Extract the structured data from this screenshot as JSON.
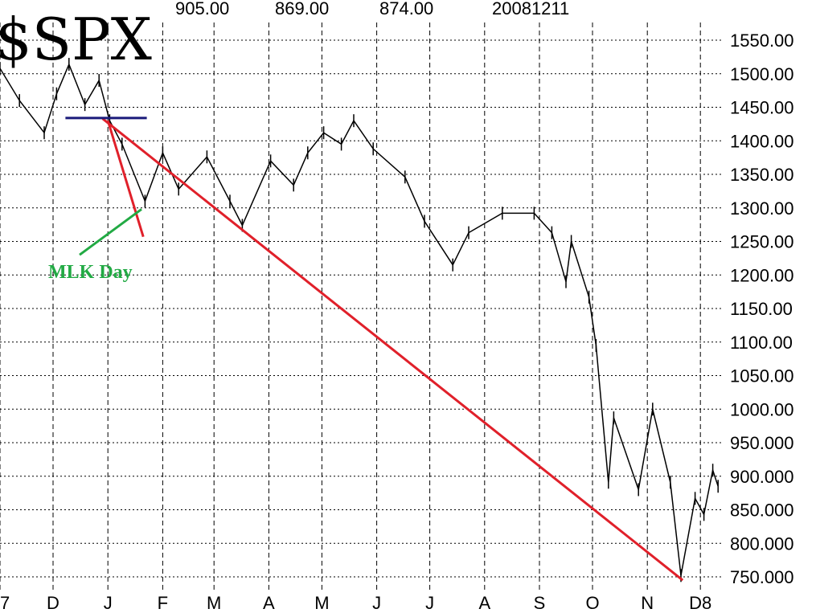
{
  "chart_data": {
    "type": "line",
    "title": "$SPX",
    "header_values": [
      "905.00",
      "869.00",
      "874.00",
      "20081211"
    ],
    "x_type": "date",
    "xlim": [
      "2007-11-01",
      "2008-12-15"
    ],
    "ylim": [
      735,
      1570
    ],
    "grid": true,
    "y_ticks": [
      1550,
      1500,
      1450,
      1400,
      1350,
      1300,
      1250,
      1200,
      1150,
      1100,
      1050,
      1000,
      950,
      900,
      850,
      800,
      750
    ],
    "y_tick_labels": [
      "1550.00",
      "1500.00",
      "1450.00",
      "1400.00",
      "1350.00",
      "1300.00",
      "1250.00",
      "1200.00",
      "1150.00",
      "1100.00",
      "1050.00",
      "1000.00",
      "950.000",
      "900.000",
      "850.000",
      "800.000",
      "750.000"
    ],
    "x_ticks": [
      "2007-11-01",
      "2007-12-01",
      "2008-01-01",
      "2008-02-01",
      "2008-03-01",
      "2008-04-01",
      "2008-05-01",
      "2008-06-01",
      "2008-07-01",
      "2008-08-01",
      "2008-09-01",
      "2008-10-01",
      "2008-11-01",
      "2008-12-01"
    ],
    "x_tick_labels": [
      "7",
      "D",
      "J",
      "F",
      "M",
      "A",
      "M",
      "J",
      "J",
      "A",
      "S",
      "O",
      "N",
      "D8"
    ],
    "series": [
      {
        "color": "#000000",
        "points": [
          [
            "2007-11-01",
            1508
          ],
          [
            "2007-11-12",
            1460
          ],
          [
            "2007-11-26",
            1412
          ],
          [
            "2007-12-03",
            1470
          ],
          [
            "2007-12-10",
            1514
          ],
          [
            "2007-12-19",
            1454
          ],
          [
            "2007-12-27",
            1490
          ],
          [
            "2008-01-02",
            1430
          ],
          [
            "2008-01-09",
            1395
          ],
          [
            "2008-01-22",
            1310
          ],
          [
            "2008-02-01",
            1382
          ],
          [
            "2008-02-10",
            1328
          ],
          [
            "2008-02-26",
            1376
          ],
          [
            "2008-03-10",
            1310
          ],
          [
            "2008-03-17",
            1274
          ],
          [
            "2008-04-02",
            1370
          ],
          [
            "2008-04-15",
            1334
          ],
          [
            "2008-04-23",
            1382
          ],
          [
            "2008-05-02",
            1412
          ],
          [
            "2008-05-12",
            1395
          ],
          [
            "2008-05-19",
            1430
          ],
          [
            "2008-05-30",
            1388
          ],
          [
            "2008-06-17",
            1346
          ],
          [
            "2008-06-28",
            1280
          ],
          [
            "2008-07-14",
            1215
          ],
          [
            "2008-07-23",
            1263
          ],
          [
            "2008-08-11",
            1292
          ],
          [
            "2008-08-29",
            1292
          ],
          [
            "2008-09-08",
            1263
          ],
          [
            "2008-09-16",
            1190
          ],
          [
            "2008-09-19",
            1250
          ],
          [
            "2008-09-29",
            1167
          ],
          [
            "2008-10-03",
            1095
          ],
          [
            "2008-10-10",
            891
          ],
          [
            "2008-10-13",
            987
          ],
          [
            "2008-10-27",
            880
          ],
          [
            "2008-11-04",
            1000
          ],
          [
            "2008-11-14",
            891
          ],
          [
            "2008-11-20",
            752
          ],
          [
            "2008-11-28",
            867
          ],
          [
            "2008-12-03",
            843
          ],
          [
            "2008-12-08",
            909
          ],
          [
            "2008-12-11",
            885
          ]
        ]
      }
    ],
    "annotations": {
      "trendline": {
        "color": "#e0202a",
        "from": [
          "2007-12-29",
          1433
        ],
        "to": [
          "2008-11-21",
          745
        ]
      },
      "short_line": {
        "color": "#e0202a",
        "from": [
          "2008-01-01",
          1430
        ],
        "to": [
          "2008-01-21",
          1257
        ]
      },
      "resistance": {
        "color": "#1a1a7a",
        "from": [
          "2007-12-08",
          1434
        ],
        "to": [
          "2008-01-23",
          1434
        ]
      },
      "mlk_pointer": {
        "color": "#22aa44",
        "from": [
          "2007-12-16",
          1230
        ],
        "to": [
          "2008-01-20",
          1298
        ]
      },
      "mlk_label": {
        "text": "MLK Day",
        "color": "#22aa44"
      }
    }
  }
}
